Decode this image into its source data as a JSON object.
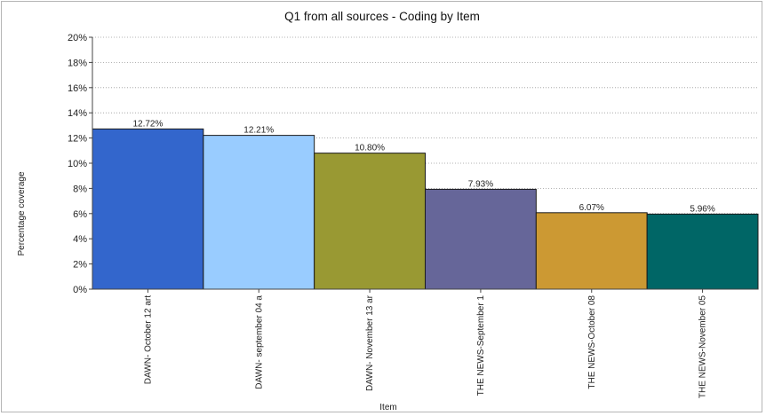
{
  "chart_data": {
    "type": "bar",
    "title": "Q1 from all sources - Coding by Item",
    "xlabel": "Item",
    "ylabel": "Percentage coverage",
    "ylim": [
      0,
      20
    ],
    "y_ticks": [
      "0%",
      "2%",
      "4%",
      "6%",
      "8%",
      "10%",
      "12%",
      "14%",
      "16%",
      "18%",
      "20%"
    ],
    "grid": "horizontal dotted",
    "categories": [
      "DAWN- October 12 art",
      "DAWN- september 04 a",
      "DAWN- November 13 ar",
      "THE NEWS-September 1",
      "THE NEWS-October 08",
      "THE NEWS-November 05"
    ],
    "values": [
      12.72,
      12.21,
      10.8,
      7.93,
      6.07,
      5.96
    ],
    "data_labels": [
      "12.72%",
      "12.21%",
      "10.80%",
      "7.93%",
      "6.07%",
      "5.96%"
    ],
    "colors": [
      "#3366cc",
      "#99ccff",
      "#999933",
      "#666699",
      "#cc9933",
      "#006666"
    ]
  }
}
